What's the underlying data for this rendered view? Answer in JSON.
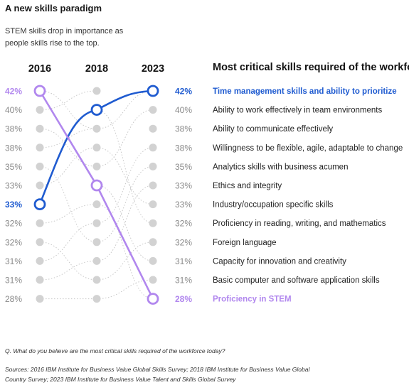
{
  "header": {
    "title": "A new skills paradigm",
    "subtitle": "STEM skills drop in importance as people skills rise to the top."
  },
  "footer": {
    "question": "Q. What do you believe are the most critical skills required of the workforce today?",
    "sources": "Sources: 2016 IBM Institute for Business Value Global Skills Survey; 2018 IBM Institute for Business Value Global Country Survey; 2023 IBM Institute for Business Value Talent and Skills Global Survey"
  },
  "colors": {
    "highlight_blue": "#1f5bd0",
    "highlight_purple": "#b187ee",
    "dot_gray": "#d2d2d2",
    "connector_gray": "#c8c8c8",
    "percent_gray": "#8a8a8a"
  },
  "chart_data": {
    "type": "slope",
    "title": "Most critical skills required of the workforce",
    "years": [
      "2016",
      "2018",
      "2023"
    ],
    "rank_labels": {
      "2016": [
        "42%",
        "40%",
        "38%",
        "38%",
        "35%",
        "33%",
        "33%",
        "32%",
        "32%",
        "31%",
        "31%",
        "28%"
      ],
      "2023": [
        "42%",
        "40%",
        "38%",
        "38%",
        "35%",
        "33%",
        "33%",
        "32%",
        "32%",
        "31%",
        "31%",
        "28%"
      ]
    },
    "skills": [
      "Time management skills and ability to prioritize",
      "Ability to work effectively in team environments",
      "Ability to communicate effectively",
      "Willingness to be flexible, agile, adaptable to change",
      "Analytics skills with business acumen",
      "Ethics and integrity",
      "Industry/occupation specific skills",
      "Proficiency in reading, writing, and mathematics",
      "Foreign language",
      "Capacity for innovation and creativity",
      "Basic computer and software application skills",
      "Proficiency in STEM"
    ],
    "highlighted": [
      {
        "skill": "Time management skills and ability to prioritize",
        "color": "#1f5bd0",
        "ranks": [
          7,
          2,
          1
        ],
        "values": [
          33,
          null,
          42
        ]
      },
      {
        "skill": "Proficiency in STEM",
        "color": "#b187ee",
        "ranks": [
          1,
          6,
          12
        ],
        "values": [
          42,
          null,
          28
        ]
      }
    ],
    "grid": false,
    "legend": "right"
  }
}
